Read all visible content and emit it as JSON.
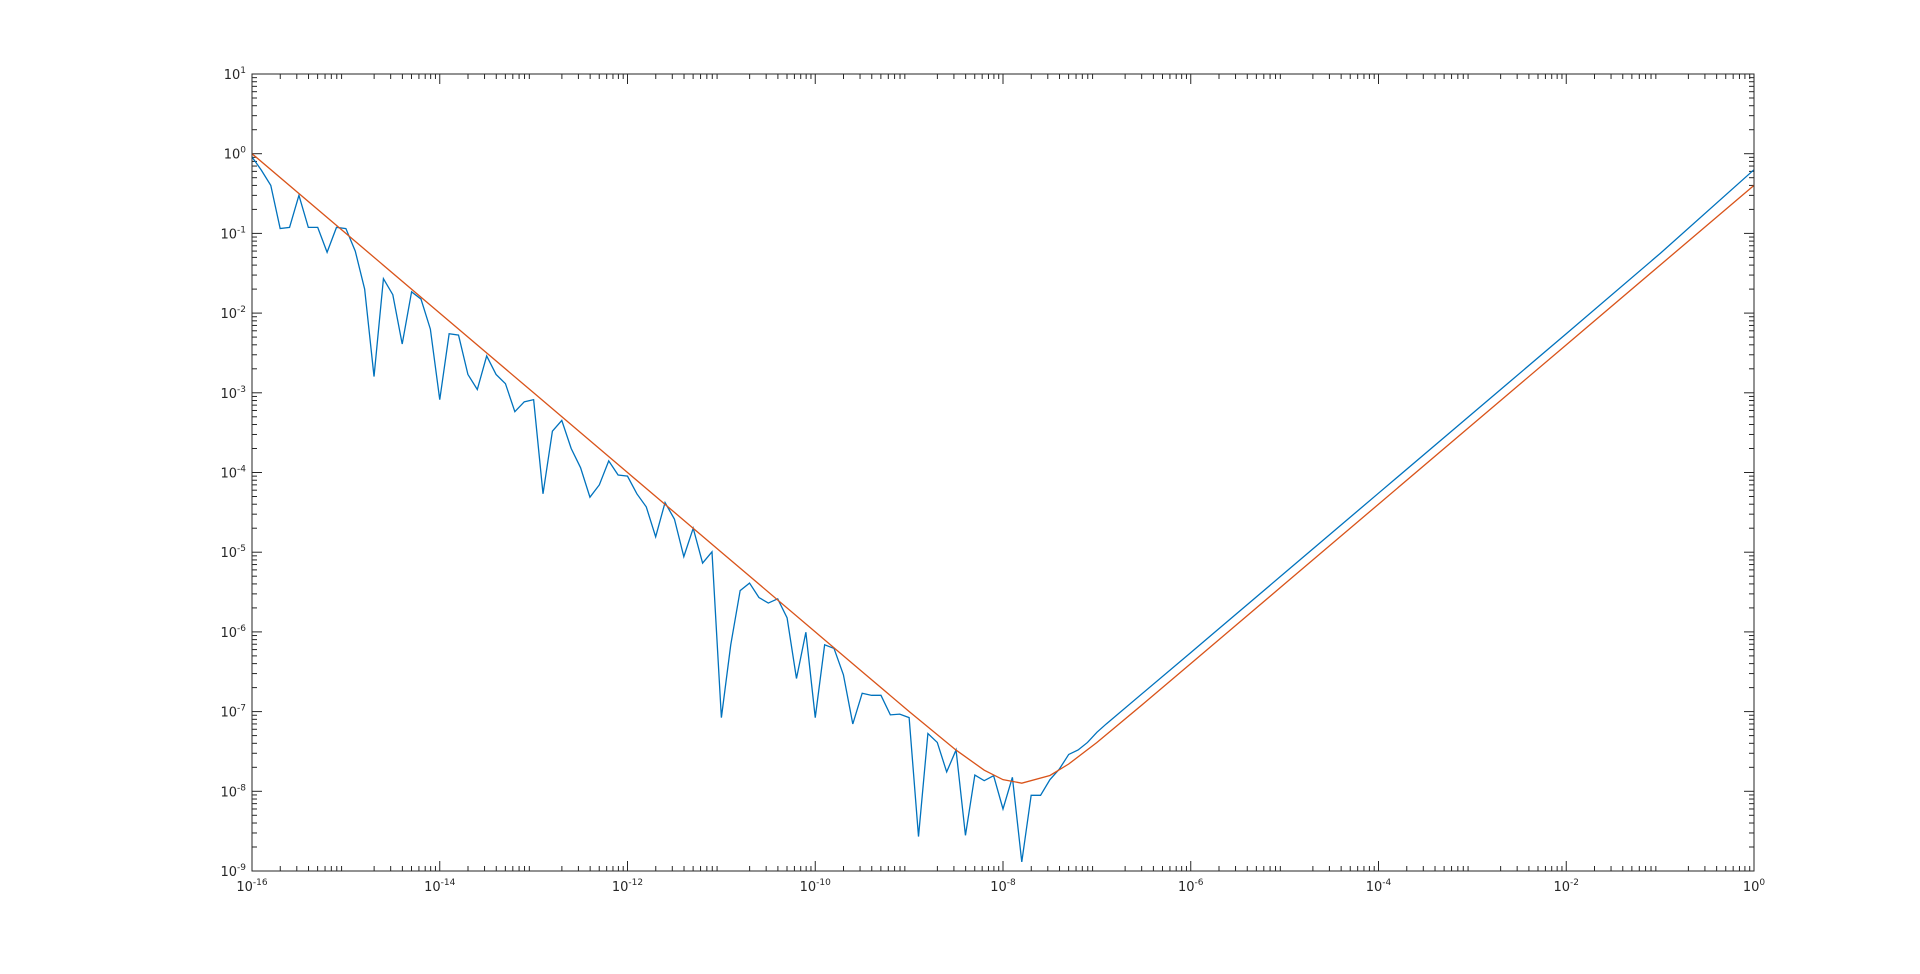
{
  "chart_data": {
    "type": "line",
    "xscale": "log",
    "yscale": "log",
    "grid": false,
    "minor_ticks": true,
    "xlim": [
      1e-16,
      1
    ],
    "ylim": [
      1e-09,
      10
    ],
    "xticks": [
      {
        "value": 1e-16,
        "label": "10",
        "exponent": "-16"
      },
      {
        "value": 1e-14,
        "label": "10",
        "exponent": "-14"
      },
      {
        "value": 1e-12,
        "label": "10",
        "exponent": "-12"
      },
      {
        "value": 1e-10,
        "label": "10",
        "exponent": "-10"
      },
      {
        "value": 1e-08,
        "label": "10",
        "exponent": "-8"
      },
      {
        "value": 1e-06,
        "label": "10",
        "exponent": "-6"
      },
      {
        "value": 0.0001,
        "label": "10",
        "exponent": "-4"
      },
      {
        "value": 0.01,
        "label": "10",
        "exponent": "-2"
      },
      {
        "value": 1,
        "label": "10",
        "exponent": "0"
      }
    ],
    "yticks": [
      {
        "value": 1e-09,
        "label": "10",
        "exponent": "-9"
      },
      {
        "value": 1e-08,
        "label": "10",
        "exponent": "-8"
      },
      {
        "value": 1e-07,
        "label": "10",
        "exponent": "-7"
      },
      {
        "value": 1e-06,
        "label": "10",
        "exponent": "-6"
      },
      {
        "value": 1e-05,
        "label": "10",
        "exponent": "-5"
      },
      {
        "value": 0.0001,
        "label": "10",
        "exponent": "-4"
      },
      {
        "value": 0.001,
        "label": "10",
        "exponent": "-3"
      },
      {
        "value": 0.01,
        "label": "10",
        "exponent": "-2"
      },
      {
        "value": 0.1,
        "label": "10",
        "exponent": "-1"
      },
      {
        "value": 1,
        "label": "10",
        "exponent": "0"
      },
      {
        "value": 10,
        "label": "10",
        "exponent": "1"
      }
    ],
    "series": [
      {
        "color": "#0072bd",
        "x": [
          1e-16,
          1.259e-16,
          1.585e-16,
          1.995e-16,
          2.512e-16,
          3.162e-16,
          3.981e-16,
          5.012e-16,
          6.31e-16,
          7.943e-16,
          1e-15,
          1.259e-15,
          1.585e-15,
          1.995e-15,
          2.512e-15,
          3.162e-15,
          3.981e-15,
          5.012e-15,
          6.31e-15,
          7.943e-15,
          1e-14,
          1.259e-14,
          1.585e-14,
          1.995e-14,
          2.512e-14,
          3.162e-14,
          3.981e-14,
          5.012e-14,
          6.31e-14,
          7.943e-14,
          1e-13,
          1.259e-13,
          1.585e-13,
          1.995e-13,
          2.512e-13,
          3.162e-13,
          3.981e-13,
          5.012e-13,
          6.31e-13,
          7.943e-13,
          1e-12,
          1.259e-12,
          1.585e-12,
          1.995e-12,
          2.512e-12,
          3.162e-12,
          3.981e-12,
          5.012e-12,
          6.31e-12,
          7.943e-12,
          1e-11,
          1.259e-11,
          1.585e-11,
          1.995e-11,
          2.512e-11,
          3.162e-11,
          3.981e-11,
          5.012e-11,
          6.31e-11,
          7.943e-11,
          1e-10,
          1.259e-10,
          1.585e-10,
          1.995e-10,
          2.512e-10,
          3.162e-10,
          3.981e-10,
          5.012e-10,
          6.31e-10,
          7.943e-10,
          1e-09,
          1.259e-09,
          1.585e-09,
          1.995e-09,
          2.512e-09,
          3.162e-09,
          3.981e-09,
          5.012e-09,
          6.31e-09,
          7.943e-09,
          1e-08,
          1.259e-08,
          1.585e-08,
          1.995e-08,
          2.512e-08,
          3.162e-08,
          3.981e-08,
          5.012e-08,
          6.31e-08,
          7.943e-08,
          1e-07,
          1.259e-07,
          1e-06,
          1e-05,
          0.0001,
          0.001,
          0.01,
          0.1,
          1
        ],
        "values": [
          0.91,
          0.62,
          0.4,
          0.115,
          0.119,
          0.3,
          0.119,
          0.119,
          0.058,
          0.119,
          0.115,
          0.06,
          0.02,
          0.0016,
          0.027,
          0.017,
          0.0041,
          0.0185,
          0.015,
          0.0063,
          0.00082,
          0.0055,
          0.0053,
          0.0017,
          0.0011,
          0.0029,
          0.0017,
          0.0013,
          0.00058,
          0.00077,
          0.00082,
          5.4e-05,
          0.00033,
          0.00045,
          0.0002,
          0.000115,
          4.9e-05,
          7e-05,
          0.00014,
          9.3e-05,
          9e-05,
          5.4e-05,
          3.7e-05,
          1.56e-05,
          4.2e-05,
          2.6e-05,
          8.8e-06,
          2e-05,
          7.3e-06,
          1.01e-05,
          8.4e-08,
          6.9e-07,
          3.3e-06,
          4.1e-06,
          2.7e-06,
          2.3e-06,
          2.6e-06,
          1.5e-06,
          2.6e-07,
          9.9e-07,
          8.4e-08,
          6.9e-07,
          6.2e-07,
          2.9e-07,
          7e-08,
          1.7e-07,
          1.6e-07,
          1.6e-07,
          9.1e-08,
          9.3e-08,
          8.4e-08,
          2.7e-09,
          5.3e-08,
          4.1e-08,
          1.75e-08,
          3.3e-08,
          2.8e-09,
          1.6e-08,
          1.36e-08,
          1.57e-08,
          6e-09,
          1.5e-08,
          1.3e-09,
          8.9e-09,
          8.9e-09,
          1.4e-08,
          1.9e-08,
          2.9e-08,
          3.3e-08,
          4.1e-08,
          5.5e-08,
          7e-08,
          5.5e-07,
          5.5e-06,
          5.5e-05,
          0.00055,
          0.0055,
          0.056,
          0.63
        ]
      },
      {
        "color": "#d95319",
        "x": [
          1e-16,
          1e-15,
          1e-14,
          1e-13,
          1e-12,
          1e-11,
          1e-10,
          3.162e-10,
          1e-09,
          3.162e-09,
          6.31e-09,
          1e-08,
          1.585e-08,
          3.162e-08,
          5.012e-08,
          1e-07,
          3.162e-07,
          1e-06,
          1e-05,
          0.0001,
          0.001,
          0.01,
          0.1,
          1
        ],
        "values": [
          1,
          0.1,
          0.01,
          0.001,
          0.0001,
          1e-05,
          1e-06,
          3.16e-07,
          1.004e-07,
          3.29e-08,
          1.84e-08,
          1.4e-08,
          1.265e-08,
          1.58e-08,
          2.2e-08,
          4.1e-08,
          1.268e-07,
          4e-07,
          4e-06,
          4e-05,
          0.0004,
          0.004,
          0.04,
          0.4
        ]
      }
    ]
  }
}
